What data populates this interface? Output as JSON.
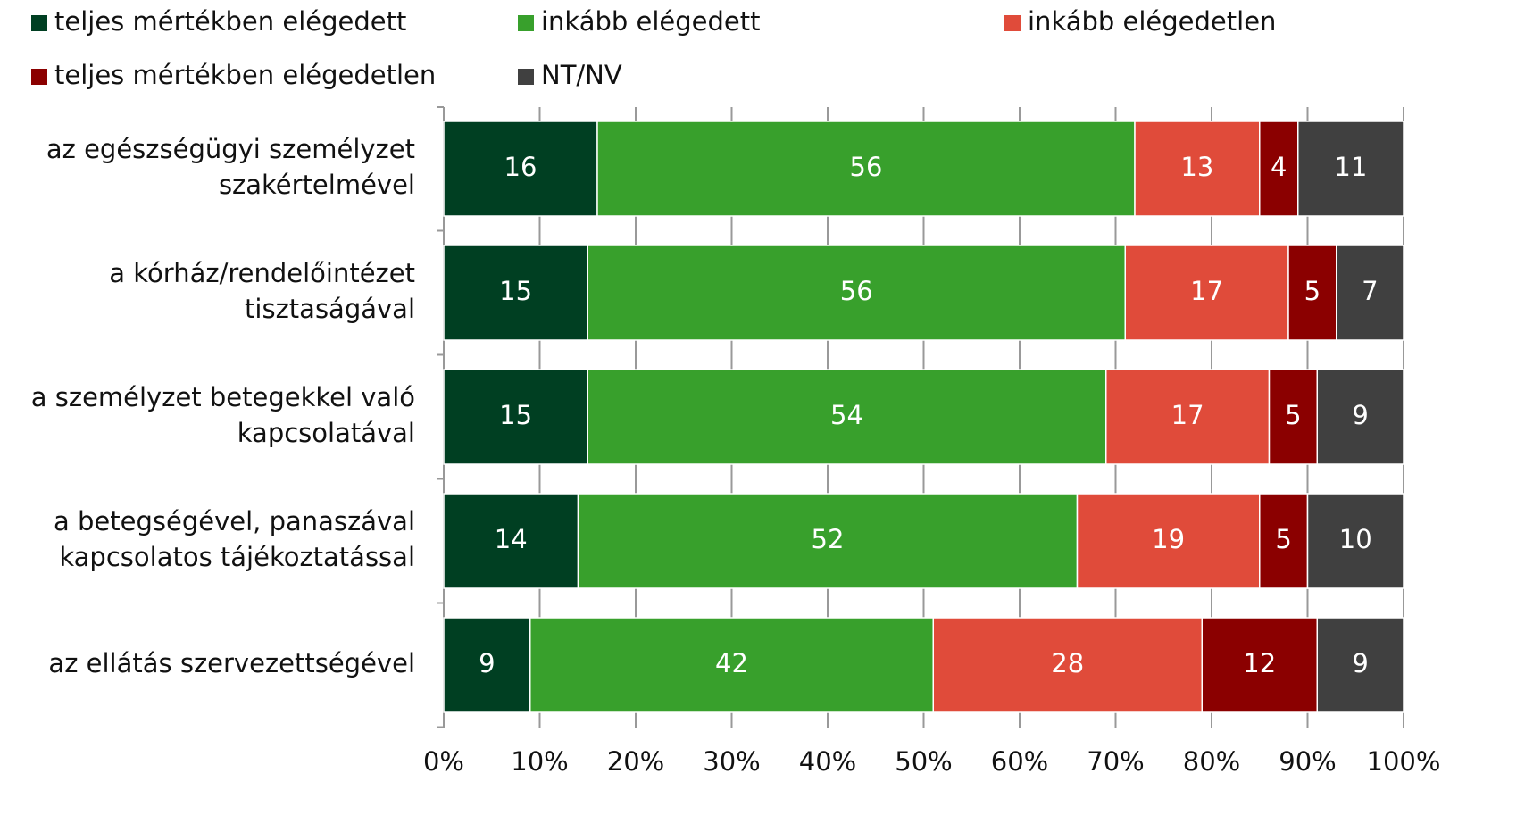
{
  "chart_data": {
    "type": "stacked_barh",
    "categories": [
      [
        "az egészségügyi személyzet",
        "szakértelmével"
      ],
      [
        "a kórház/rendelőintézet",
        "tisztaságával"
      ],
      [
        "a személyzet betegekkel való",
        "kapcsolatával"
      ],
      [
        "a betegségével, panaszával",
        "kapcsolatos tájékoztatással"
      ],
      [
        "az ellátás szervezettségével"
      ]
    ],
    "series": [
      {
        "name": "teljes mértékben elégedett",
        "color": "#003f22",
        "values": [
          16,
          15,
          15,
          14,
          9
        ]
      },
      {
        "name": "inkább elégedett",
        "color": "#38a02c",
        "values": [
          56,
          56,
          54,
          52,
          42
        ]
      },
      {
        "name": "inkább elégedetlen",
        "color": "#e04b3a",
        "values": [
          13,
          17,
          17,
          19,
          28
        ]
      },
      {
        "name": "teljes mértékben elégedetlen",
        "color": "#8b0000",
        "values": [
          4,
          5,
          5,
          5,
          12
        ]
      },
      {
        "name": "NT/NV",
        "color": "#404040",
        "values": [
          11,
          7,
          9,
          10,
          9
        ]
      }
    ],
    "xlim": [
      0,
      100
    ],
    "xticks": [
      {
        "value": 0,
        "label": "0%"
      },
      {
        "value": 10,
        "label": "10%"
      },
      {
        "value": 20,
        "label": "20%"
      },
      {
        "value": 30,
        "label": "30%"
      },
      {
        "value": 40,
        "label": "40%"
      },
      {
        "value": 50,
        "label": "50%"
      },
      {
        "value": 60,
        "label": "60%"
      },
      {
        "value": 70,
        "label": "70%"
      },
      {
        "value": 80,
        "label": "80%"
      },
      {
        "value": 90,
        "label": "90%"
      },
      {
        "value": 100,
        "label": "100%"
      }
    ],
    "grid": true,
    "legend": "top"
  }
}
